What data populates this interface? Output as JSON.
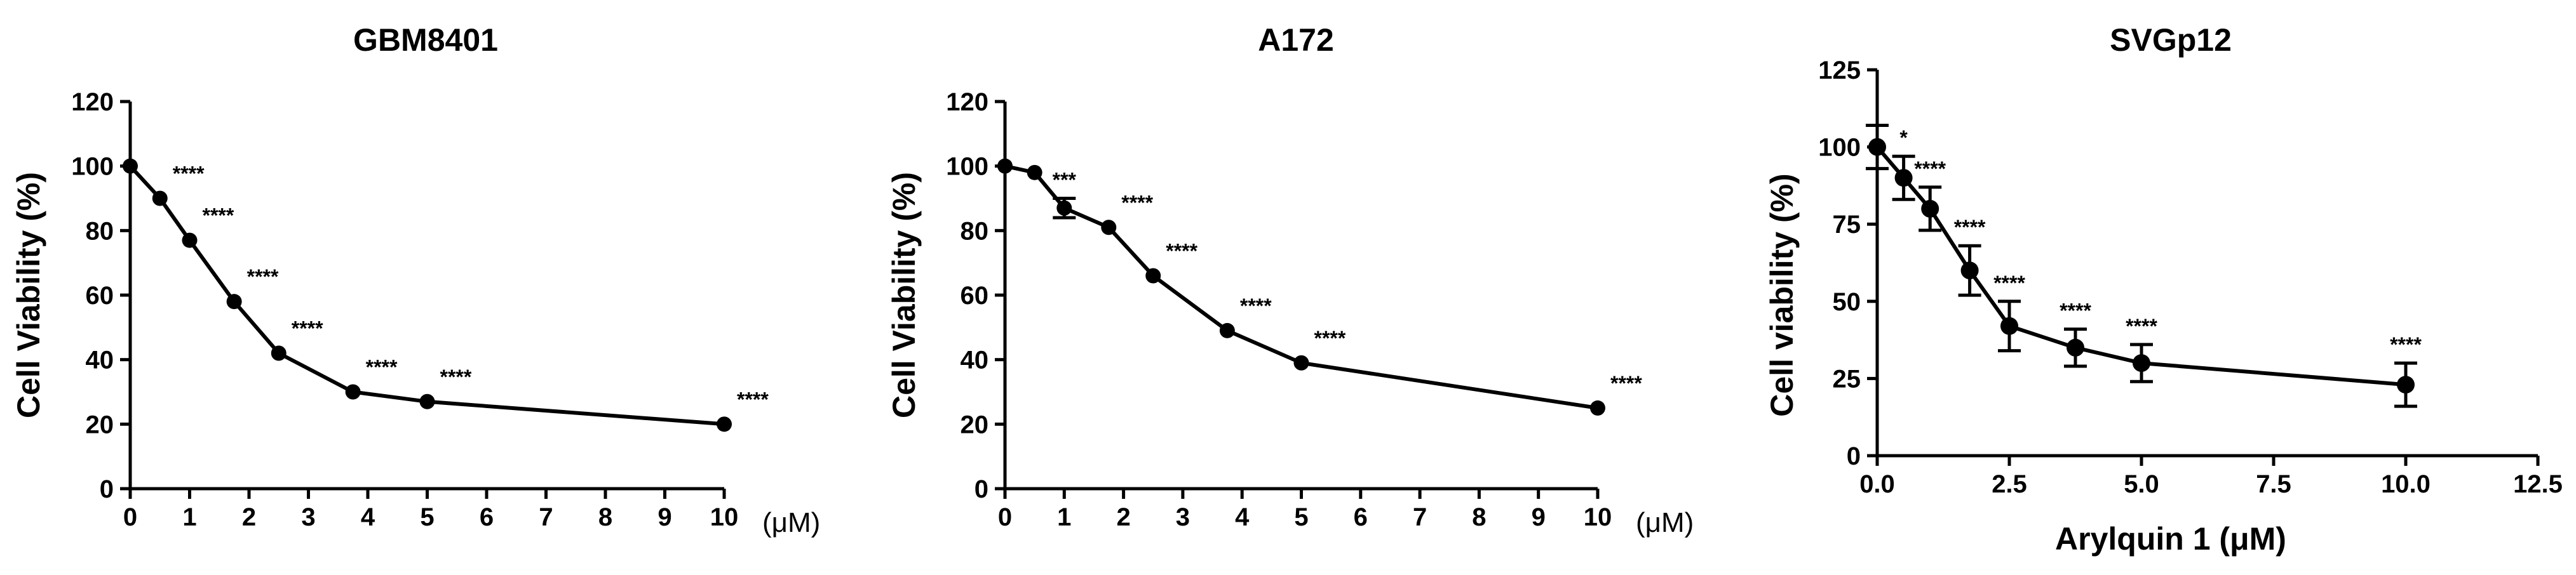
{
  "chart_data": [
    {
      "type": "line",
      "title": "GBM8401",
      "ylabel": "Cell Viability (%)",
      "xlabel": "",
      "x_unit": "(μM)",
      "x_scale": "linear",
      "xlim": [
        0,
        10
      ],
      "ylim": [
        0,
        120
      ],
      "x_ticks": [
        "0",
        "1",
        "2",
        "3",
        "4",
        "5",
        "6",
        "7",
        "8",
        "9",
        "10"
      ],
      "y_ticks": [
        "0",
        "20",
        "40",
        "60",
        "80",
        "100",
        "120"
      ],
      "x": [
        0,
        0.5,
        1,
        1.75,
        2.5,
        3.75,
        5,
        10
      ],
      "series": [
        {
          "values": [
            100,
            90,
            77,
            58,
            42,
            30,
            27,
            20
          ]
        }
      ],
      "errors": [
        0,
        0,
        0,
        0,
        0,
        0,
        0,
        0
      ],
      "significance": [
        "",
        "****",
        "****",
        "****",
        "****",
        "****",
        "****",
        "****"
      ]
    },
    {
      "type": "line",
      "title": "A172",
      "ylabel": "Cell Viability (%)",
      "xlabel": "",
      "x_unit": "(μM)",
      "x_scale": "linear",
      "xlim": [
        0,
        10
      ],
      "ylim": [
        0,
        120
      ],
      "x_ticks": [
        "0",
        "1",
        "2",
        "3",
        "4",
        "5",
        "6",
        "7",
        "8",
        "9",
        "10"
      ],
      "y_ticks": [
        "0",
        "20",
        "40",
        "60",
        "80",
        "100",
        "120"
      ],
      "x": [
        0,
        0.5,
        1,
        1.75,
        2.5,
        3.75,
        5,
        10
      ],
      "series": [
        {
          "values": [
            100,
            98,
            87,
            81,
            66,
            49,
            39,
            25
          ]
        }
      ],
      "errors": [
        0,
        0,
        3,
        0,
        0,
        0,
        0,
        0
      ],
      "significance": [
        "",
        "",
        "***",
        "****",
        "****",
        "****",
        "****",
        "****"
      ]
    },
    {
      "type": "line",
      "title": "SVGp12",
      "ylabel": "Cell viability (%)",
      "xlabel": "Arylquin 1 (μM)",
      "x_unit": "",
      "x_scale": "linear",
      "xlim": [
        0,
        12.5
      ],
      "ylim": [
        0,
        125
      ],
      "x_ticks": [
        "0.0",
        "2.5",
        "5.0",
        "7.5",
        "10.0",
        "12.5"
      ],
      "y_ticks": [
        "0",
        "25",
        "50",
        "75",
        "100",
        "125"
      ],
      "x": [
        0,
        0.5,
        1,
        1.75,
        2.5,
        3.75,
        5,
        10
      ],
      "series": [
        {
          "values": [
            100,
            90,
            80,
            60,
            42,
            35,
            30,
            23
          ]
        }
      ],
      "errors": [
        7,
        7,
        7,
        8,
        8,
        6,
        6,
        7
      ],
      "significance": [
        "",
        "*",
        "****",
        "****",
        "****",
        "****",
        "****",
        "****"
      ]
    }
  ]
}
